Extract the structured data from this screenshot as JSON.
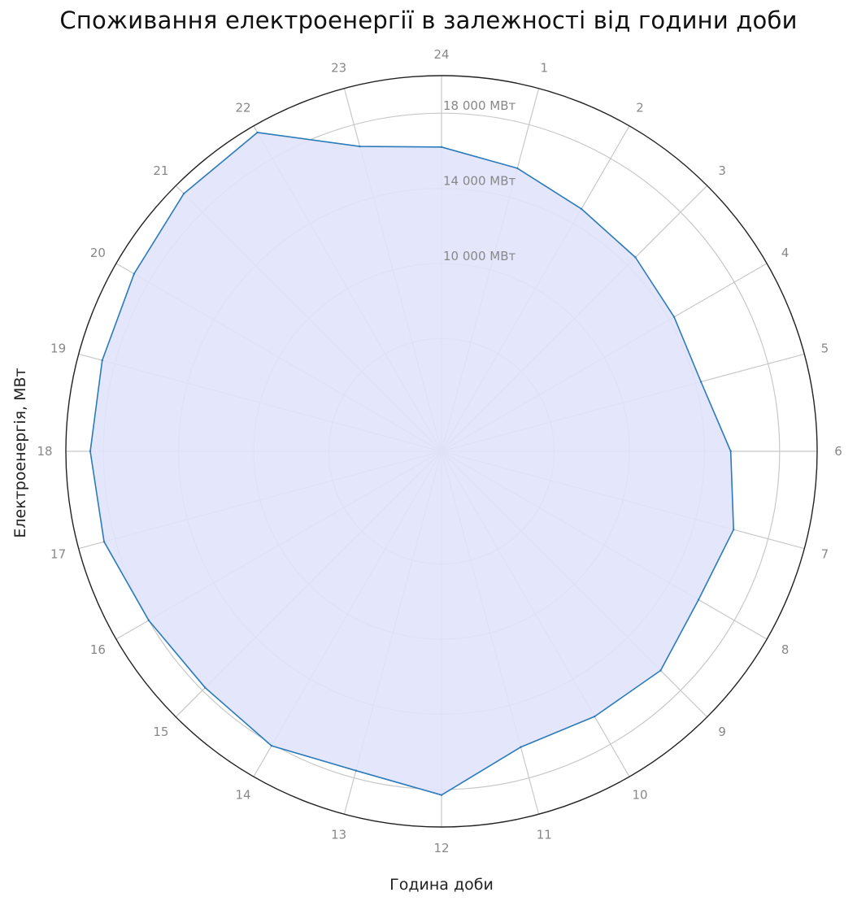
{
  "chart_data": {
    "type": "radar",
    "title": "Споживання електроенергії в залежності від години доби",
    "xlabel": "Година доби",
    "ylabel": "Електроенергія, МВт",
    "categories": [
      "24",
      "1",
      "2",
      "3",
      "4",
      "5",
      "6",
      "7",
      "8",
      "9",
      "10",
      "11",
      "12",
      "13",
      "14",
      "15",
      "16",
      "17",
      "18",
      "19",
      "20",
      "21",
      "22",
      "23"
    ],
    "values": [
      16200,
      15600,
      14900,
      14600,
      14300,
      14300,
      15400,
      16100,
      15800,
      16500,
      16300,
      16300,
      18300,
      17600,
      18100,
      17800,
      18000,
      18600,
      18700,
      18700,
      18900,
      19400,
      19600,
      16800
    ],
    "rlim": [
      0,
      20000
    ],
    "rings": [
      6000,
      10000,
      14000,
      18000
    ],
    "ring_labels": [
      "10 000 МВт",
      "14 000 МВт",
      "18 000 МВт"
    ],
    "ring_label_values": [
      10000,
      14000,
      18000
    ],
    "series_color": "#2b7bba",
    "fill_color": "#e1e3fb",
    "grid": true
  }
}
